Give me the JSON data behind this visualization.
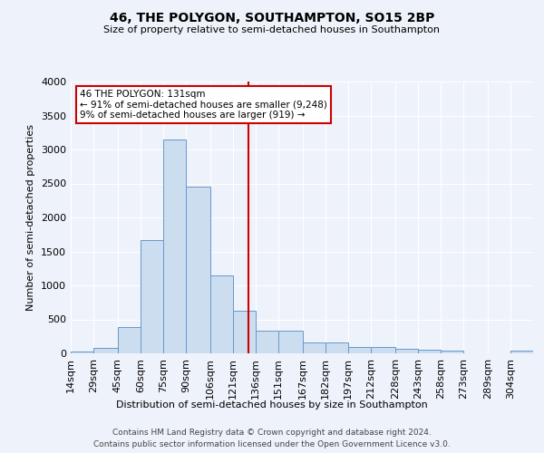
{
  "title": "46, THE POLYGON, SOUTHAMPTON, SO15 2BP",
  "subtitle": "Size of property relative to semi-detached houses in Southampton",
  "xlabel": "Distribution of semi-detached houses by size in Southampton",
  "ylabel": "Number of semi-detached properties",
  "bar_color": "#ccddf0",
  "bar_edge_color": "#6699cc",
  "vline_x": 131,
  "vline_color": "#cc0000",
  "annotation_title": "46 THE POLYGON: 131sqm",
  "annotation_line1": "← 91% of semi-detached houses are smaller (9,248)",
  "annotation_line2": "9% of semi-detached houses are larger (919) →",
  "annotation_box_color": "#cc0000",
  "background_color": "#eef2fa",
  "grid_color": "#ffffff",
  "bin_edges": [
    14,
    29,
    45,
    60,
    75,
    90,
    106,
    121,
    136,
    151,
    167,
    182,
    197,
    212,
    228,
    243,
    258,
    273,
    289,
    304,
    319
  ],
  "bar_heights": [
    30,
    80,
    390,
    1670,
    3150,
    2450,
    1150,
    630,
    340,
    340,
    160,
    160,
    100,
    90,
    65,
    55,
    35,
    5,
    5,
    35
  ],
  "ylim": [
    0,
    4000
  ],
  "yticks": [
    0,
    500,
    1000,
    1500,
    2000,
    2500,
    3000,
    3500,
    4000
  ],
  "footer1": "Contains HM Land Registry data © Crown copyright and database right 2024.",
  "footer2": "Contains public sector information licensed under the Open Government Licence v3.0."
}
